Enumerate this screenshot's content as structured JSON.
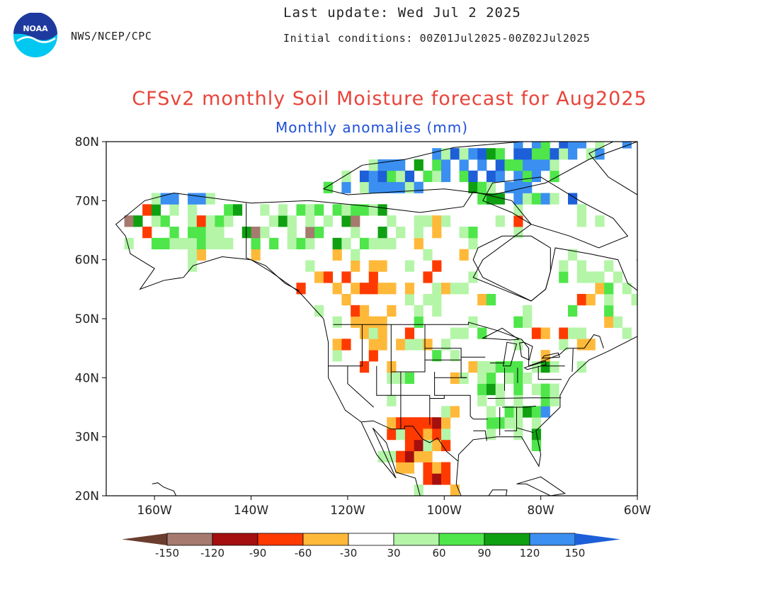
{
  "header": {
    "org": "NWS/NCEP/CPC",
    "last_update": "Last update: Wed Jul 2 2025",
    "initial_conditions": "Initial conditions: 00Z01Jul2025-00Z02Jul2025",
    "logo_text": "NOAA"
  },
  "title": "CFSv2 monthly Soil Moisture forecast for Aug2025",
  "subtitle": "Monthly anomalies (mm)",
  "axes": {
    "x_ticks": [
      "160W",
      "140W",
      "120W",
      "100W",
      "80W",
      "60W"
    ],
    "x_values": [
      -160,
      -140,
      -120,
      -100,
      -80,
      -60
    ],
    "y_ticks": [
      "80N",
      "70N",
      "60N",
      "50N",
      "40N",
      "30N",
      "20N"
    ],
    "y_values": [
      80,
      70,
      60,
      50,
      40,
      30,
      20
    ],
    "lon_range": [
      -170,
      -60
    ],
    "lat_range": [
      20,
      80
    ]
  },
  "colorbar": {
    "labels": [
      "-150",
      "-120",
      "-90",
      "-60",
      "-30",
      "30",
      "60",
      "90",
      "120",
      "150"
    ],
    "colors": [
      "#6b3d2e",
      "#a67a6e",
      "#a50f0f",
      "#ff3a00",
      "#ffb93a",
      "#ffffff",
      "#b4f5a8",
      "#4ee64a",
      "#0fa012",
      "#3b8ff0",
      "#1d5fd8"
    ]
  },
  "palette": {
    "title": "#e8443a",
    "subtitle": "#1d4fd8",
    "coast": "#000000",
    "noaa_blue": "#1e3a9e",
    "noaa_cyan": "#00c8f0"
  }
}
